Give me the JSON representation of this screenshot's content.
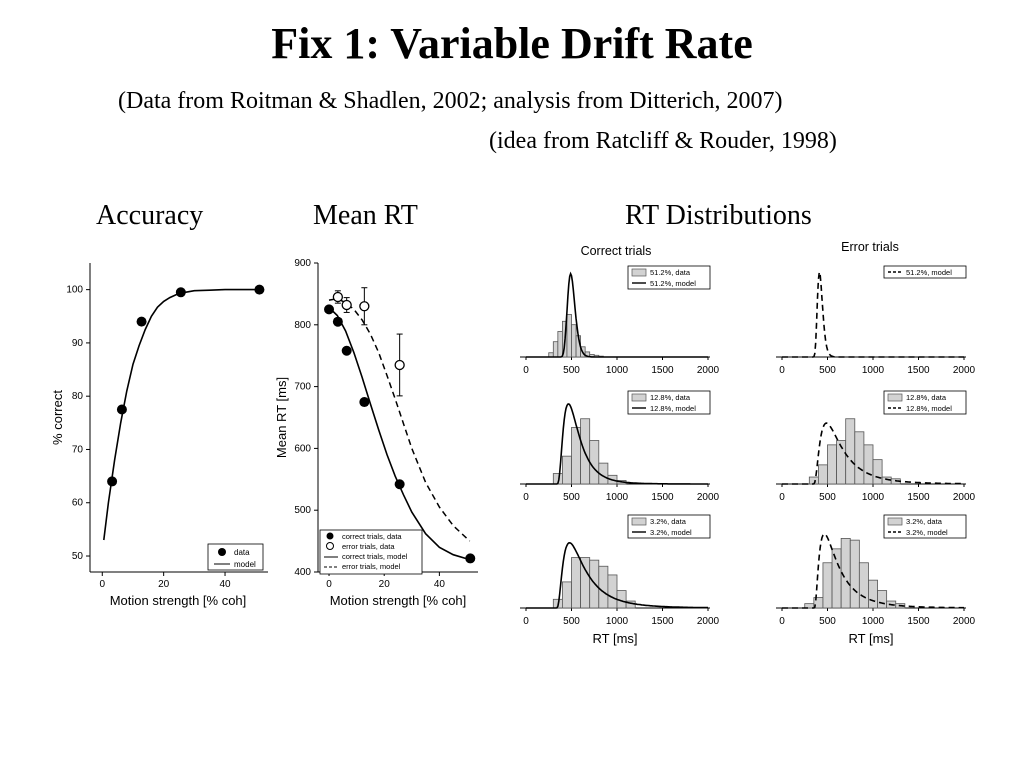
{
  "slide": {
    "title": "Fix 1: Variable Drift Rate",
    "subtitle": "(Data from Roitman & Shadlen, 2002; analysis from Ditterich, 2007)",
    "idea": "(idea from Ratcliff & Rouder, 1998)",
    "section_accuracy": "Accuracy",
    "section_meanrt": "Mean RT",
    "section_rtdist": "RT Distributions"
  },
  "chart_data": [
    {
      "id": "accuracy",
      "type": "scatter",
      "xlabel": "Motion strength [% coh]",
      "ylabel": "% correct",
      "xlim": [
        -4,
        54
      ],
      "ylim": [
        47,
        105
      ],
      "xticks": [
        0,
        20,
        40
      ],
      "yticks": [
        50,
        60,
        70,
        80,
        90,
        100
      ],
      "series": [
        {
          "name": "data",
          "style": "filled-dot",
          "x": [
            3.2,
            6.4,
            12.8,
            25.6,
            51.2
          ],
          "y": [
            64,
            77.5,
            94,
            99.5,
            100
          ]
        },
        {
          "name": "model",
          "style": "solid-line",
          "x": [
            0.5,
            2,
            4,
            6,
            8,
            10,
            12,
            14,
            16,
            18,
            20,
            22,
            25,
            30,
            35,
            40,
            45,
            51.2
          ],
          "y": [
            53,
            60,
            68,
            75,
            81,
            86,
            89.5,
            92.5,
            95,
            96.7,
            97.8,
            98.5,
            99.3,
            99.8,
            99.9,
            100,
            100,
            100
          ]
        }
      ]
    },
    {
      "id": "meanrt",
      "type": "scatter",
      "xlabel": "Motion strength [% coh]",
      "ylabel": "Mean RT [ms]",
      "xlim": [
        -4,
        54
      ],
      "ylim": [
        400,
        900
      ],
      "xticks": [
        0,
        20,
        40
      ],
      "yticks": [
        400,
        500,
        600,
        700,
        800,
        900
      ],
      "series": [
        {
          "name": "correct trials, data",
          "style": "filled-dot",
          "x": [
            0,
            3.2,
            6.4,
            12.8,
            25.6,
            51.2
          ],
          "y": [
            825,
            805,
            758,
            675,
            542,
            422
          ]
        },
        {
          "name": "error trials, data",
          "style": "open-dot",
          "x": [
            3.2,
            6.4,
            12.8,
            25.6
          ],
          "y": [
            845,
            832,
            830,
            735
          ],
          "err": [
            10,
            12,
            30,
            50
          ]
        },
        {
          "name": "correct trials, model",
          "style": "solid-line",
          "x": [
            0,
            3,
            6,
            9,
            12,
            15,
            18,
            21,
            24,
            27,
            30,
            35,
            40,
            45,
            51
          ],
          "y": [
            828,
            815,
            790,
            755,
            715,
            672,
            630,
            590,
            555,
            525,
            497,
            462,
            440,
            428,
            420
          ]
        },
        {
          "name": "error trials, model",
          "style": "dashed-line",
          "x": [
            0,
            3,
            6,
            9,
            12,
            15,
            18,
            21,
            24,
            27,
            30,
            35,
            40,
            45,
            51
          ],
          "y": [
            840,
            842,
            836,
            825,
            808,
            785,
            755,
            718,
            680,
            640,
            600,
            545,
            505,
            475,
            450
          ]
        }
      ]
    },
    {
      "id": "rtdist",
      "type": "bar",
      "col_titles": [
        "Correct trials",
        "Error trials"
      ],
      "xlabel": "RT [ms]",
      "xlim": [
        0,
        2000
      ],
      "xticks": [
        0,
        500,
        1000,
        1500,
        2000
      ],
      "panels": [
        {
          "legend": [
            "51.2%, data",
            "51.2%, model"
          ],
          "bins_from": 250,
          "bin_width": 50,
          "hist": [
            0.05,
            0.18,
            0.3,
            0.42,
            0.5,
            0.38,
            0.25,
            0.12,
            0.06,
            0.03,
            0.02,
            0.01
          ],
          "model": "m51c"
        },
        {
          "legend": [
            "51.2%, model"
          ],
          "model": "m51e",
          "dashed": true
        },
        {
          "legend": [
            "12.8%, data",
            "12.8%, model"
          ],
          "bins_from": 300,
          "bin_width": 100,
          "hist": [
            0.12,
            0.32,
            0.65,
            0.75,
            0.5,
            0.24,
            0.1,
            0.04
          ],
          "model": "m12c"
        },
        {
          "legend": [
            "12.8%, data",
            "12.8%, model"
          ],
          "bins_from": 300,
          "bin_width": 100,
          "dashed": true,
          "hist": [
            0.08,
            0.22,
            0.45,
            0.5,
            0.75,
            0.6,
            0.45,
            0.28,
            0.08,
            0.06
          ],
          "model": "m12e"
        },
        {
          "legend": [
            "3.2%, data",
            "3.2%, model"
          ],
          "bins_from": 300,
          "bin_width": 100,
          "hist": [
            0.1,
            0.3,
            0.58,
            0.58,
            0.55,
            0.48,
            0.38,
            0.2,
            0.08
          ],
          "model": "m3c"
        },
        {
          "legend": [
            "3.2%, data",
            "3.2%, model"
          ],
          "bins_from": 250,
          "bin_width": 100,
          "dashed": true,
          "hist": [
            0.05,
            0.12,
            0.52,
            0.68,
            0.8,
            0.78,
            0.52,
            0.32,
            0.2,
            0.08,
            0.05
          ],
          "model": "m3e"
        }
      ]
    }
  ]
}
